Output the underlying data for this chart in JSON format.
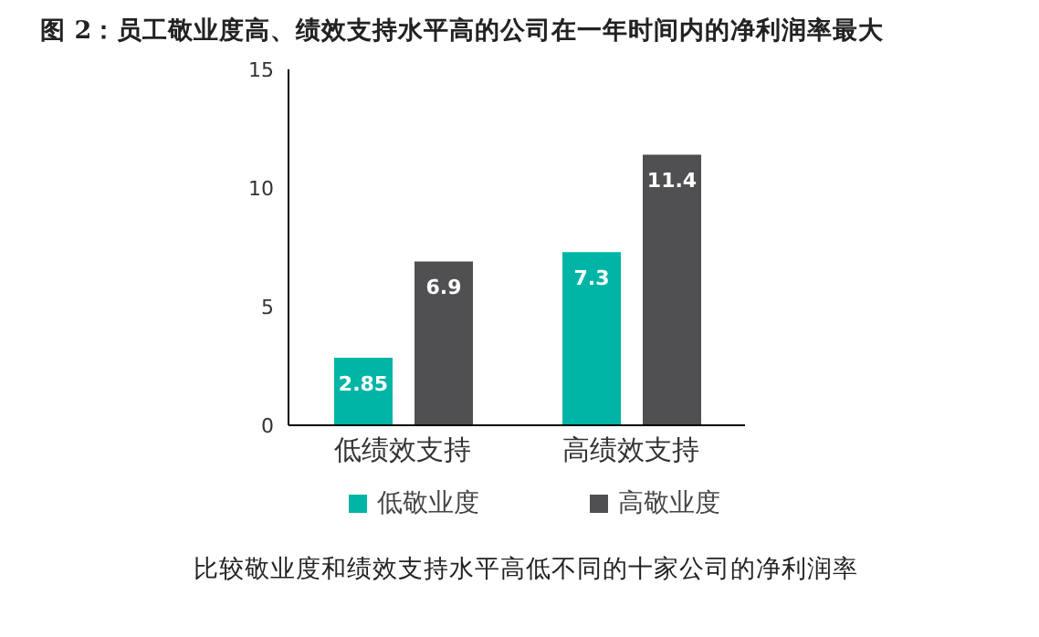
{
  "chart_data": {
    "type": "bar",
    "title": "图 2：员工敬业度高、绩效支持水平高的公司在一年时间内的净利润率最大",
    "categories": [
      "低绩效支持",
      "高绩效支持"
    ],
    "series": [
      {
        "name": "低敬业度",
        "color": "#00b5a5",
        "values": [
          2.85,
          7.3
        ]
      },
      {
        "name": "高敬业度",
        "color": "#505052",
        "values": [
          6.9,
          11.4
        ]
      }
    ],
    "ylim": [
      0,
      15
    ],
    "yticks": [
      0,
      5,
      10,
      15
    ],
    "grid": false,
    "legend": "bottom",
    "data_labels": true,
    "annotations": [
      "比较敬业度和绩效支持水平高低不同的十家公司的净利润率"
    ]
  }
}
